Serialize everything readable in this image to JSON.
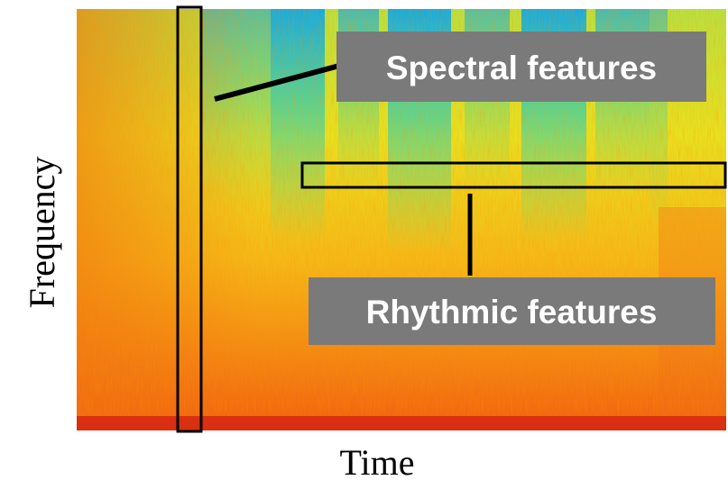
{
  "axes": {
    "y_label": "Frequency",
    "x_label": "Time"
  },
  "annotations": {
    "spectral": "Spectral features",
    "rhythmic": "Rhythmic features"
  }
}
